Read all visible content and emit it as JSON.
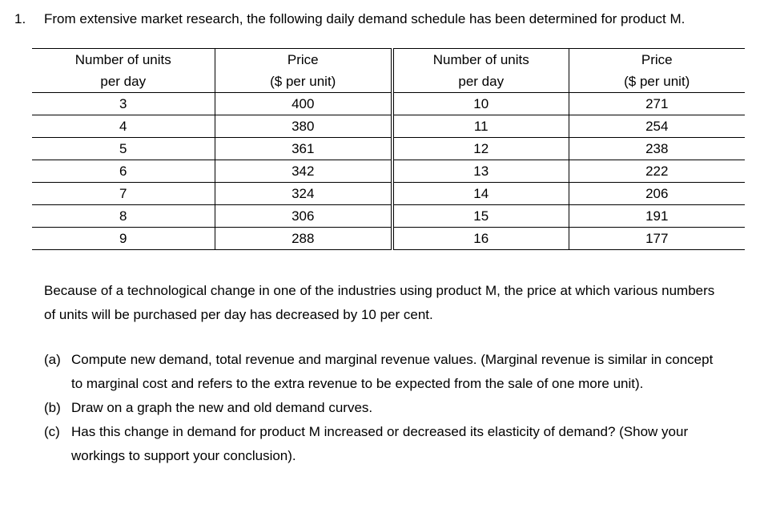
{
  "question": {
    "number": "1.",
    "intro": "From extensive market research, the following daily demand schedule has been determined for product M."
  },
  "table": {
    "headers": [
      {
        "line1": "Number of units",
        "line2": "per day"
      },
      {
        "line1": "Price",
        "line2": "($ per unit)"
      },
      {
        "line1": "Number of units",
        "line2": "per day"
      },
      {
        "line1": "Price",
        "line2": "($ per unit)"
      }
    ],
    "rows": [
      [
        "3",
        "400",
        "10",
        "271"
      ],
      [
        "4",
        "380",
        "11",
        "254"
      ],
      [
        "5",
        "361",
        "12",
        "238"
      ],
      [
        "6",
        "342",
        "13",
        "222"
      ],
      [
        "7",
        "324",
        "14",
        "206"
      ],
      [
        "8",
        "306",
        "15",
        "191"
      ],
      [
        "9",
        "288",
        "16",
        "177"
      ]
    ]
  },
  "paragraph": "Because of a technological change in one of the industries using product M, the price at which various numbers of units will be purchased per day has decreased by 10 per cent.",
  "parts": [
    {
      "label": "(a)",
      "text": "Compute new demand, total revenue and marginal revenue values. (Marginal revenue is similar in concept to marginal cost and refers to the extra revenue to be expected from the sale of one more unit)."
    },
    {
      "label": "(b)",
      "text": "Draw on a graph the new and old demand curves."
    },
    {
      "label": "(c)",
      "text": "Has this change in demand for product M increased or decreased its elasticity of demand? (Show your workings to support your conclusion)."
    }
  ]
}
